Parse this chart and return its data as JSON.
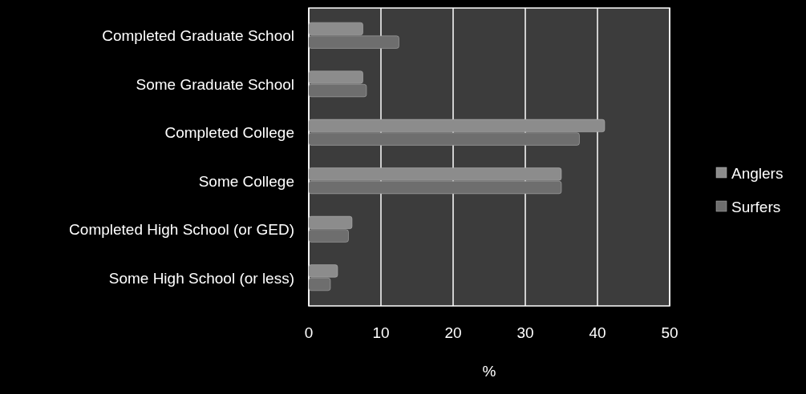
{
  "chart_data": {
    "type": "bar",
    "orientation": "horizontal",
    "xlabel": "%",
    "categories": [
      "Completed Graduate School",
      "Some Graduate School",
      "Completed College",
      "Some College",
      "Completed High School (or GED)",
      "Some High School (or less)"
    ],
    "series": [
      {
        "name": "Anglers",
        "color": "#8c8c8c",
        "values": [
          7.5,
          7.5,
          41,
          35,
          6,
          4
        ]
      },
      {
        "name": "Surfers",
        "color": "#6e6e6e",
        "values": [
          12.5,
          8,
          37.5,
          35,
          5.5,
          3
        ]
      }
    ],
    "xlim": [
      0,
      50
    ],
    "xticks": [
      0,
      10,
      20,
      30,
      40,
      50
    ],
    "grid": "x",
    "legend": "right"
  }
}
